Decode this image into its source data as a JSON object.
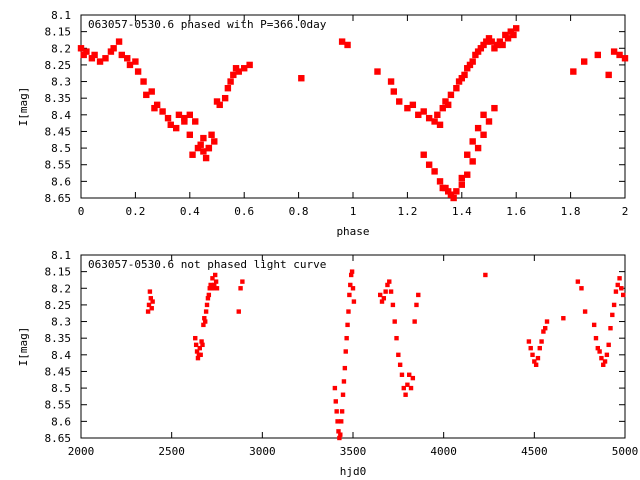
{
  "chart_data": [
    {
      "type": "scatter",
      "title": "063057-0530.6 phased with P=366.0day",
      "xlabel": "phase",
      "ylabel": "I[mag]",
      "xlim": [
        0,
        2
      ],
      "ylim": [
        8.65,
        8.1
      ],
      "y_inverted": true,
      "grid": false,
      "x_ticks": [
        "0",
        "0.2",
        "0.4",
        "0.6",
        "0.8",
        "1",
        "1.2",
        "1.4",
        "1.6",
        "1.8",
        "2"
      ],
      "y_ticks": [
        "8.1",
        "8.15",
        "8.2",
        "8.25",
        "8.3",
        "8.35",
        "8.4",
        "8.45",
        "8.5",
        "8.55",
        "8.6",
        "8.65"
      ],
      "marker_color": "#ff0000",
      "series": [
        {
          "x": [
            0.0,
            0.01,
            0.02,
            0.04,
            0.05,
            0.07,
            0.09,
            0.11,
            0.12,
            0.14,
            0.15,
            0.17,
            0.18,
            0.2,
            0.21,
            0.23,
            0.24,
            0.26,
            0.27,
            0.28,
            0.3,
            0.32,
            0.33,
            0.35,
            0.36,
            0.38,
            0.4,
            0.41,
            0.43,
            0.44,
            0.45,
            0.46,
            0.47,
            0.48,
            0.5,
            0.51,
            0.53,
            0.54,
            0.55,
            0.56,
            0.57,
            0.58,
            0.6,
            0.62,
            0.81,
            0.96,
            0.98,
            1.09,
            1.14,
            1.15,
            1.17,
            1.2,
            1.22,
            1.24,
            1.26,
            1.28,
            1.3,
            1.31,
            1.32,
            1.33,
            1.34,
            1.35,
            1.36,
            1.38,
            1.39,
            1.4,
            1.41,
            1.42,
            1.43,
            1.44,
            1.45,
            1.46,
            1.47,
            1.48,
            1.49,
            1.5,
            1.51,
            1.52,
            1.53,
            1.54,
            1.55,
            1.56,
            1.57,
            1.58,
            1.59,
            1.6,
            1.81,
            1.85,
            1.9,
            1.94,
            1.96,
            1.98,
            2.0,
            1.33,
            1.35,
            1.37,
            1.4,
            1.42,
            1.44,
            1.46,
            1.48,
            1.5,
            1.52,
            1.26,
            1.28,
            1.3,
            1.32,
            1.34,
            1.36,
            1.38,
            1.4,
            1.42,
            1.44,
            1.46,
            1.48,
            0.45,
            0.47,
            0.49,
            0.42,
            0.4,
            0.38
          ],
          "y": [
            8.2,
            8.22,
            8.21,
            8.23,
            8.22,
            8.24,
            8.23,
            8.21,
            8.2,
            8.18,
            8.22,
            8.23,
            8.25,
            8.24,
            8.27,
            8.3,
            8.34,
            8.33,
            8.38,
            8.37,
            8.39,
            8.41,
            8.43,
            8.44,
            8.4,
            8.42,
            8.46,
            8.52,
            8.5,
            8.49,
            8.51,
            8.53,
            8.5,
            8.46,
            8.36,
            8.37,
            8.35,
            8.32,
            8.3,
            8.28,
            8.26,
            8.27,
            8.26,
            8.25,
            8.29,
            8.18,
            8.19,
            8.27,
            8.3,
            8.33,
            8.36,
            8.38,
            8.37,
            8.4,
            8.39,
            8.41,
            8.42,
            8.4,
            8.43,
            8.38,
            8.36,
            8.37,
            8.34,
            8.32,
            8.3,
            8.29,
            8.28,
            8.26,
            8.25,
            8.24,
            8.22,
            8.21,
            8.2,
            8.19,
            8.18,
            8.17,
            8.18,
            8.2,
            8.19,
            8.18,
            8.19,
            8.16,
            8.17,
            8.15,
            8.16,
            8.14,
            8.27,
            8.24,
            8.22,
            8.28,
            8.21,
            8.22,
            8.23,
            8.62,
            8.63,
            8.65,
            8.61,
            8.58,
            8.54,
            8.5,
            8.46,
            8.42,
            8.38,
            8.52,
            8.55,
            8.57,
            8.6,
            8.62,
            8.64,
            8.63,
            8.59,
            8.52,
            8.48,
            8.44,
            8.4,
            8.47,
            8.5,
            8.48,
            8.42,
            8.4,
            8.41
          ]
        }
      ]
    },
    {
      "type": "scatter",
      "title": "063057-0530.6 not phased light curve",
      "xlabel": "hjd0",
      "ylabel": "I[mag]",
      "xlim": [
        2000,
        5000
      ],
      "ylim": [
        8.65,
        8.1
      ],
      "y_inverted": true,
      "grid": false,
      "x_ticks": [
        "2000",
        "2500",
        "3000",
        "3500",
        "4000",
        "4500",
        "5000"
      ],
      "y_ticks": [
        "8.1",
        "8.15",
        "8.2",
        "8.25",
        "8.3",
        "8.35",
        "8.4",
        "8.45",
        "8.5",
        "8.55",
        "8.6",
        "8.65"
      ],
      "marker_color": "#ff0000",
      "series": [
        {
          "x": [
            2370,
            2375,
            2380,
            2385,
            2390,
            2395,
            2630,
            2635,
            2640,
            2645,
            2650,
            2655,
            2660,
            2665,
            2670,
            2675,
            2680,
            2685,
            2690,
            2695,
            2700,
            2705,
            2710,
            2715,
            2720,
            2725,
            2730,
            2735,
            2740,
            2745,
            2750,
            2870,
            2880,
            2890,
            3400,
            3405,
            3410,
            3415,
            3420,
            3425,
            3430,
            3435,
            3440,
            3445,
            3450,
            3455,
            3460,
            3465,
            3470,
            3475,
            3480,
            3485,
            3490,
            3495,
            3500,
            3505,
            3650,
            3660,
            3670,
            3680,
            3690,
            3700,
            3710,
            3720,
            3730,
            3740,
            3750,
            3760,
            3770,
            3780,
            3790,
            3800,
            3810,
            3820,
            3830,
            3840,
            3850,
            3860,
            4230,
            4470,
            4480,
            4490,
            4500,
            4510,
            4520,
            4530,
            4540,
            4550,
            4560,
            4570,
            4660,
            4740,
            4760,
            4780,
            4830,
            4840,
            4850,
            4860,
            4870,
            4880,
            4890,
            4900,
            4910,
            4920,
            4930,
            4940,
            4950,
            4960,
            4970,
            4980,
            4990
          ],
          "y": [
            8.27,
            8.25,
            8.21,
            8.23,
            8.26,
            8.24,
            8.35,
            8.37,
            8.39,
            8.41,
            8.4,
            8.38,
            8.4,
            8.36,
            8.37,
            8.31,
            8.29,
            8.3,
            8.27,
            8.25,
            8.23,
            8.22,
            8.2,
            8.19,
            8.2,
            8.17,
            8.2,
            8.19,
            8.16,
            8.18,
            8.2,
            8.27,
            8.2,
            8.18,
            8.5,
            8.54,
            8.57,
            8.6,
            8.63,
            8.65,
            8.64,
            8.6,
            8.57,
            8.52,
            8.48,
            8.44,
            8.39,
            8.35,
            8.31,
            8.27,
            8.22,
            8.19,
            8.16,
            8.15,
            8.2,
            8.24,
            8.22,
            8.24,
            8.23,
            8.21,
            8.19,
            8.18,
            8.21,
            8.25,
            8.3,
            8.35,
            8.4,
            8.43,
            8.46,
            8.5,
            8.52,
            8.49,
            8.46,
            8.5,
            8.47,
            8.3,
            8.25,
            8.22,
            8.16,
            8.36,
            8.38,
            8.4,
            8.42,
            8.43,
            8.41,
            8.38,
            8.36,
            8.33,
            8.32,
            8.3,
            8.29,
            8.18,
            8.2,
            8.27,
            8.31,
            8.35,
            8.38,
            8.39,
            8.41,
            8.43,
            8.42,
            8.4,
            8.37,
            8.32,
            8.28,
            8.25,
            8.21,
            8.19,
            8.17,
            8.2,
            8.22
          ]
        }
      ]
    }
  ]
}
